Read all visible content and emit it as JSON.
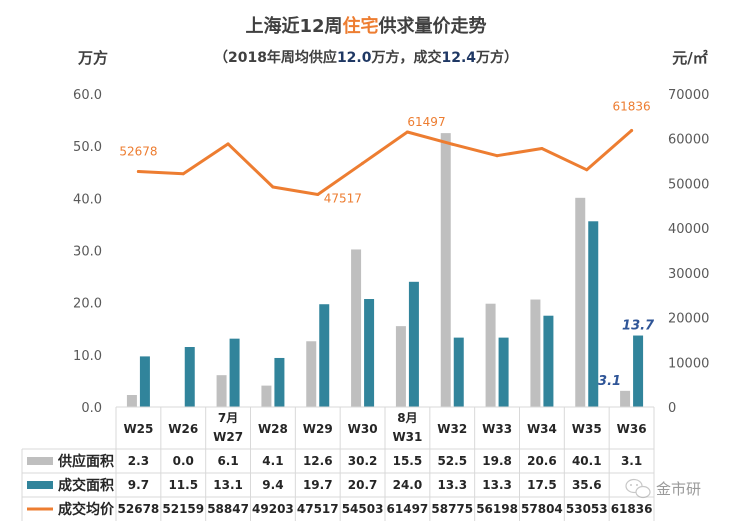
{
  "chart_data": {
    "type": "bar",
    "title_parts": [
      "上海近12周",
      "住宅",
      "供求量价走势"
    ],
    "subtitle_parts": [
      "（2018年周均供应",
      "12.0",
      "万方，成交",
      "12.4",
      "万方）"
    ],
    "ylabel": "万方",
    "y2label": "元/㎡",
    "ylim": [
      0,
      60
    ],
    "y2lim": [
      0,
      70000
    ],
    "yticks": [
      "0.0",
      "10.0",
      "20.0",
      "30.0",
      "40.0",
      "50.0",
      "60.0"
    ],
    "y2ticks": [
      "0",
      "10000",
      "20000",
      "30000",
      "40000",
      "50000",
      "60000",
      "70000"
    ],
    "categories": [
      {
        "month": "",
        "week": "W25"
      },
      {
        "month": "",
        "week": "W26"
      },
      {
        "month": "7月",
        "week": "W27"
      },
      {
        "month": "",
        "week": "W28"
      },
      {
        "month": "",
        "week": "W29"
      },
      {
        "month": "",
        "week": "W30"
      },
      {
        "month": "8月",
        "week": "W31"
      },
      {
        "month": "",
        "week": "W32"
      },
      {
        "month": "",
        "week": "W33"
      },
      {
        "month": "",
        "week": "W34"
      },
      {
        "month": "",
        "week": "W35"
      },
      {
        "month": "",
        "week": "W36"
      }
    ],
    "series": [
      {
        "name": "供应面积",
        "type": "bar",
        "axis": "left",
        "color": "#BFBFBF",
        "values": [
          2.3,
          0.0,
          6.1,
          4.1,
          12.6,
          30.2,
          15.5,
          52.5,
          19.8,
          20.6,
          40.1,
          3.1
        ],
        "table_values": [
          "2.3",
          "0.0",
          "6.1",
          "4.1",
          "12.6",
          "30.2",
          "15.5",
          "52.5",
          "19.8",
          "20.6",
          "40.1",
          "3.1"
        ]
      },
      {
        "name": "成交面积",
        "type": "bar",
        "axis": "left",
        "color": "#31849B",
        "values": [
          9.7,
          11.5,
          13.1,
          9.4,
          19.7,
          20.7,
          24.0,
          13.3,
          13.3,
          17.5,
          35.6,
          13.7
        ],
        "table_values": [
          "9.7",
          "11.5",
          "13.1",
          "9.4",
          "19.7",
          "20.7",
          "24.0",
          "13.3",
          "13.3",
          "17.5",
          "35.6",
          ""
        ]
      },
      {
        "name": "成交均价",
        "type": "line",
        "axis": "right",
        "color": "#ED7D31",
        "values": [
          52678,
          52159,
          58847,
          49203,
          47517,
          54503,
          61497,
          58775,
          56198,
          57804,
          53053,
          61836
        ],
        "table_values": [
          "52678",
          "52159",
          "58847",
          "49203",
          "47517",
          "54503",
          "61497",
          "58775",
          "56198",
          "57804",
          "53053",
          "61836"
        ]
      }
    ],
    "line_point_labels": [
      {
        "index": 0,
        "text": "52678"
      },
      {
        "index": 4,
        "text": "47517"
      },
      {
        "index": 6,
        "text": "61497"
      },
      {
        "index": 11,
        "text": "61836"
      }
    ],
    "bar_point_labels": [
      {
        "series": 0,
        "index": 11,
        "text": "3.1"
      },
      {
        "series": 1,
        "index": 11,
        "text": "13.7"
      }
    ],
    "legend": "bottom-data-table",
    "grid": false
  },
  "watermark": {
    "icon": "wechat-icon",
    "text": "金市研"
  }
}
